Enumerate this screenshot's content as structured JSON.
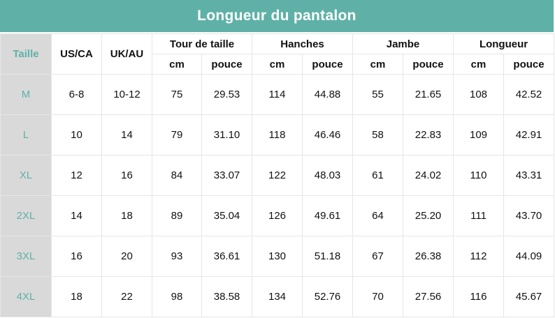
{
  "title": "Longueur du pantalon",
  "headers": {
    "size": "Taille",
    "us_ca": "US/CA",
    "uk_au": "UK/AU",
    "groups": [
      "Tour de taille",
      "Hanches",
      "Jambe",
      "Longueur"
    ],
    "unit_cm": "cm",
    "unit_inch": "pouce"
  },
  "rows": [
    [
      "M",
      "6-8",
      "10-12",
      "75",
      "29.53",
      "114",
      "44.88",
      "55",
      "21.65",
      "108",
      "42.52"
    ],
    [
      "L",
      "10",
      "14",
      "79",
      "31.10",
      "118",
      "46.46",
      "58",
      "22.83",
      "109",
      "42.91"
    ],
    [
      "XL",
      "12",
      "16",
      "84",
      "33.07",
      "122",
      "48.03",
      "61",
      "24.02",
      "110",
      "43.31"
    ],
    [
      "2XL",
      "14",
      "18",
      "89",
      "35.04",
      "126",
      "49.61",
      "64",
      "25.20",
      "111",
      "43.70"
    ],
    [
      "3XL",
      "16",
      "20",
      "93",
      "36.61",
      "130",
      "51.18",
      "67",
      "26.38",
      "112",
      "44.09"
    ],
    [
      "4XL",
      "18",
      "22",
      "98",
      "38.58",
      "134",
      "52.76",
      "70",
      "27.56",
      "116",
      "45.67"
    ]
  ],
  "colors": {
    "accent": "#5fb1a7",
    "size_column_bg": "#d9d9d9"
  }
}
